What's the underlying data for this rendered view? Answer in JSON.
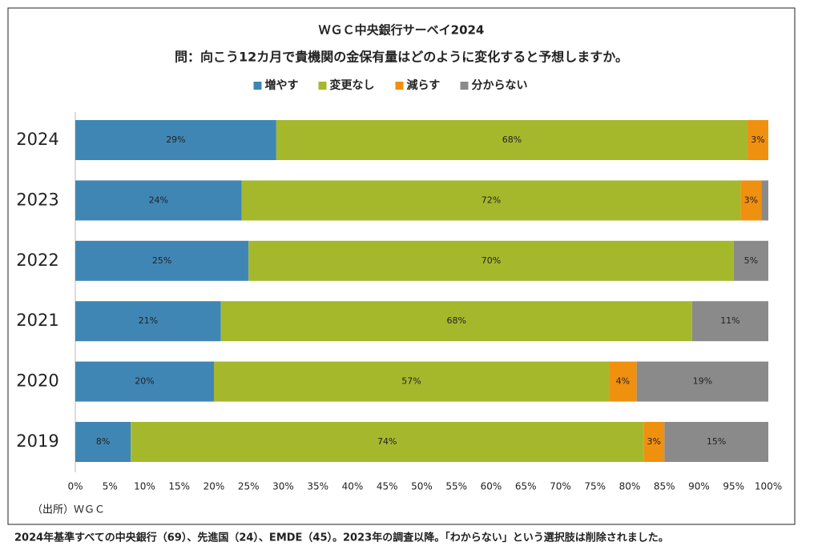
{
  "chart_data": {
    "type": "stacked-bar-horizontal",
    "title": "ＷＧＣ中央銀行サーベイ2024",
    "subtitle": "問：向こう12カ月で貴機関の金保有量はどのように変化すると予想しますか。",
    "categories": [
      "2024",
      "2023",
      "2022",
      "2021",
      "2020",
      "2019"
    ],
    "series": [
      {
        "name": "増やす",
        "color": "#3f86b4",
        "label_color": "#ffffff",
        "values": [
          29,
          24,
          25,
          21,
          20,
          8
        ],
        "value_labels": [
          "29%",
          "24%",
          "25%",
          "21%",
          "20%",
          "8%"
        ]
      },
      {
        "name": "変更なし",
        "color": "#a5b82c",
        "label_color": "#ffffff",
        "values": [
          68,
          72,
          70,
          68,
          57,
          74
        ],
        "value_labels": [
          "68%",
          "72%",
          "70%",
          "68%",
          "57%",
          "74%"
        ]
      },
      {
        "name": "減らす",
        "color": "#f0900f",
        "label_color": "#333333",
        "values": [
          3,
          3,
          null,
          null,
          4,
          3
        ],
        "value_labels": [
          "3%",
          "3%",
          null,
          null,
          "4%",
          "3%"
        ]
      },
      {
        "name": "分からない",
        "color": "#8a8a8a",
        "label_color": "#333333",
        "values": [
          null,
          1,
          5,
          11,
          19,
          15
        ],
        "value_labels": [
          null,
          null,
          "5%",
          "11%",
          "19%",
          "15%"
        ]
      }
    ],
    "xlim": [
      0,
      100
    ],
    "xticks": [
      {
        "value": 0,
        "label": "0%"
      },
      {
        "value": 5,
        "label": "5%"
      },
      {
        "value": 10,
        "label": "10%"
      },
      {
        "value": 15,
        "label": "15%"
      },
      {
        "value": 20,
        "label": "20%"
      },
      {
        "value": 25,
        "label": "25%"
      },
      {
        "value": 30,
        "label": "30%"
      },
      {
        "value": 35,
        "label": "35%"
      },
      {
        "value": 40,
        "label": "40%"
      },
      {
        "value": 45,
        "label": "45%"
      },
      {
        "value": 50,
        "label": "50%"
      },
      {
        "value": 55,
        "label": "55%"
      },
      {
        "value": 60,
        "label": "60%"
      },
      {
        "value": 65,
        "label": "65%"
      },
      {
        "value": 70,
        "label": "70%"
      },
      {
        "value": 75,
        "label": "75%"
      },
      {
        "value": 80,
        "label": "80%"
      },
      {
        "value": 85,
        "label": "85%"
      },
      {
        "value": 90,
        "label": "90%"
      },
      {
        "value": 95,
        "label": "95%"
      },
      {
        "value": 100,
        "label": "100%"
      }
    ],
    "grid": false,
    "legend": "top",
    "source": "（出所）ＷＧＣ",
    "footnote": "2024年基準すべての中央銀行（69）、先進国（24）、EMDE（45）。2023年の調査以降。「わからない」という選択肢は削除されました。"
  }
}
